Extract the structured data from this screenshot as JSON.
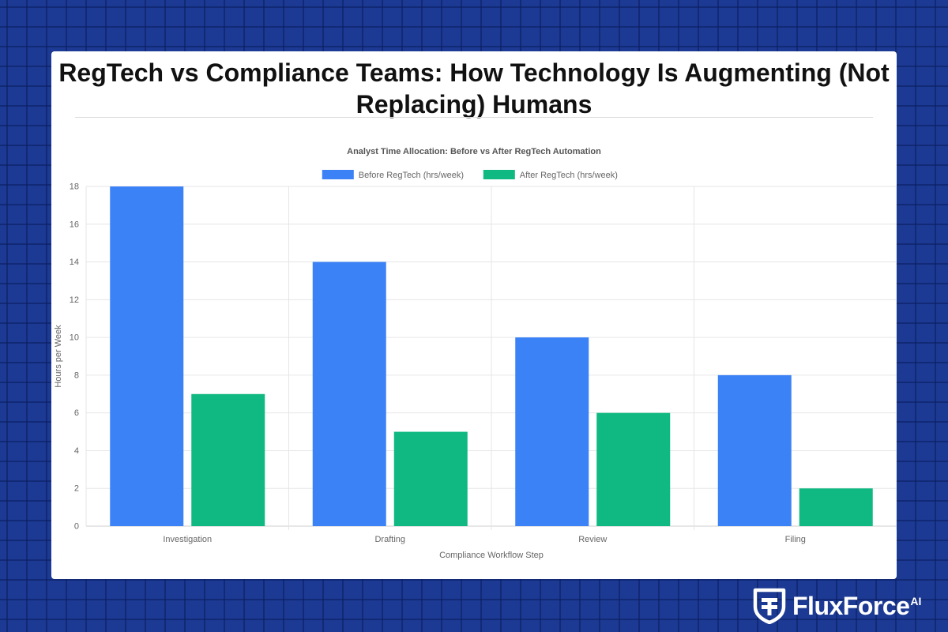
{
  "page": {
    "title": "RegTech vs Compliance Teams: How Technology Is Augmenting (Not Replacing) Humans"
  },
  "logo": {
    "name": "FluxForce",
    "superscript": "AI"
  },
  "chart_data": {
    "type": "bar",
    "title": "Analyst Time Allocation: Before vs After RegTech Automation",
    "xlabel": "Compliance Workflow Step",
    "ylabel": "Hours per Week",
    "categories": [
      "Investigation",
      "Drafting",
      "Review",
      "Filing"
    ],
    "series": [
      {
        "name": "Before RegTech (hrs/week)",
        "color": "#3b82f6",
        "values": [
          18,
          14,
          10,
          8
        ]
      },
      {
        "name": "After RegTech (hrs/week)",
        "color": "#10b981",
        "values": [
          7,
          5,
          6,
          2
        ]
      }
    ],
    "ylim": [
      0,
      18
    ],
    "yticks": [
      0,
      2,
      4,
      6,
      8,
      10,
      12,
      14,
      16,
      18
    ],
    "grid": true,
    "legend": "top-center"
  }
}
